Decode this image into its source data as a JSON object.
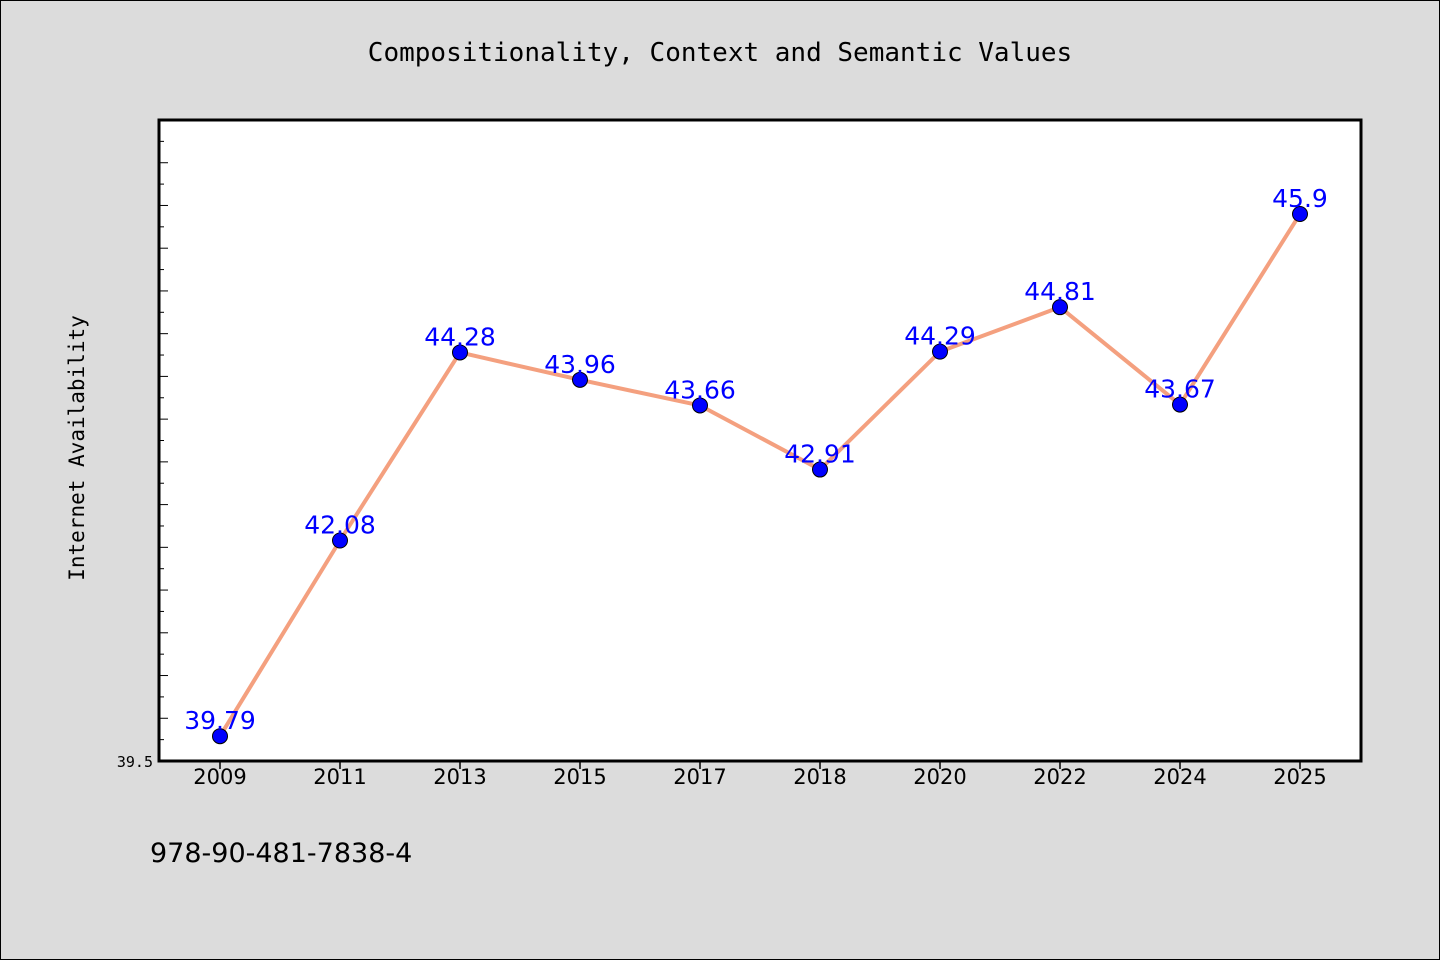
{
  "chart_data": {
    "type": "line",
    "title": "Compositionality, Context and Semantic Values",
    "xlabel": "",
    "ylabel": "Internet Availability",
    "categories": [
      "2009",
      "2011",
      "2013",
      "2015",
      "2017",
      "2018",
      "2020",
      "2022",
      "2024",
      "2025"
    ],
    "series": [
      {
        "values": [
          39.79,
          42.08,
          44.28,
          43.96,
          43.66,
          42.91,
          44.29,
          44.81,
          43.67,
          45.9
        ],
        "color": "#f4a07f",
        "marker_color": "#0000ff"
      }
    ],
    "data_labels": [
      "39.79",
      "42.08",
      "44.28",
      "43.96",
      "43.66",
      "42.91",
      "44.29",
      "44.81",
      "43.67",
      "45.9"
    ],
    "ylim": [
      39.5,
      47.0
    ],
    "y_tick_labels": [
      "39.5"
    ],
    "grid": false,
    "label_color": "#0000ff"
  },
  "footer_text": "978-90-481-7838-4"
}
